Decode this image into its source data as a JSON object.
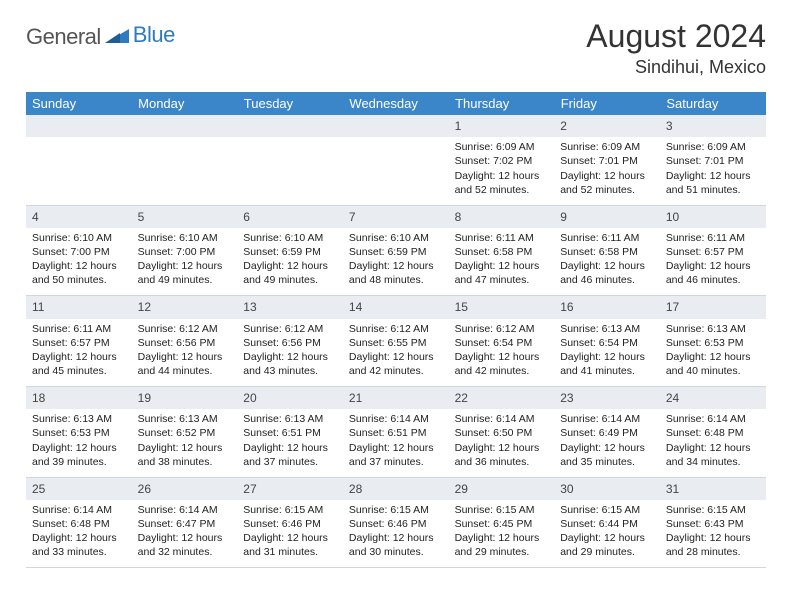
{
  "brand": {
    "part1": "General",
    "part2": "Blue"
  },
  "title": "August 2024",
  "location": "Sindihui, Mexico",
  "day_headers": [
    "Sunday",
    "Monday",
    "Tuesday",
    "Wednesday",
    "Thursday",
    "Friday",
    "Saturday"
  ],
  "colors": {
    "header_bg": "#3a86c8",
    "header_fg": "#ffffff",
    "daynum_bg": "#e9edf1",
    "border": "#cfd6dd",
    "brand_blue": "#2f7bbf"
  },
  "weeks": [
    [
      null,
      null,
      null,
      null,
      {
        "n": "1",
        "sr": "Sunrise: 6:09 AM",
        "ss": "Sunset: 7:02 PM",
        "dl": "Daylight: 12 hours and 52 minutes."
      },
      {
        "n": "2",
        "sr": "Sunrise: 6:09 AM",
        "ss": "Sunset: 7:01 PM",
        "dl": "Daylight: 12 hours and 52 minutes."
      },
      {
        "n": "3",
        "sr": "Sunrise: 6:09 AM",
        "ss": "Sunset: 7:01 PM",
        "dl": "Daylight: 12 hours and 51 minutes."
      }
    ],
    [
      {
        "n": "4",
        "sr": "Sunrise: 6:10 AM",
        "ss": "Sunset: 7:00 PM",
        "dl": "Daylight: 12 hours and 50 minutes."
      },
      {
        "n": "5",
        "sr": "Sunrise: 6:10 AM",
        "ss": "Sunset: 7:00 PM",
        "dl": "Daylight: 12 hours and 49 minutes."
      },
      {
        "n": "6",
        "sr": "Sunrise: 6:10 AM",
        "ss": "Sunset: 6:59 PM",
        "dl": "Daylight: 12 hours and 49 minutes."
      },
      {
        "n": "7",
        "sr": "Sunrise: 6:10 AM",
        "ss": "Sunset: 6:59 PM",
        "dl": "Daylight: 12 hours and 48 minutes."
      },
      {
        "n": "8",
        "sr": "Sunrise: 6:11 AM",
        "ss": "Sunset: 6:58 PM",
        "dl": "Daylight: 12 hours and 47 minutes."
      },
      {
        "n": "9",
        "sr": "Sunrise: 6:11 AM",
        "ss": "Sunset: 6:58 PM",
        "dl": "Daylight: 12 hours and 46 minutes."
      },
      {
        "n": "10",
        "sr": "Sunrise: 6:11 AM",
        "ss": "Sunset: 6:57 PM",
        "dl": "Daylight: 12 hours and 46 minutes."
      }
    ],
    [
      {
        "n": "11",
        "sr": "Sunrise: 6:11 AM",
        "ss": "Sunset: 6:57 PM",
        "dl": "Daylight: 12 hours and 45 minutes."
      },
      {
        "n": "12",
        "sr": "Sunrise: 6:12 AM",
        "ss": "Sunset: 6:56 PM",
        "dl": "Daylight: 12 hours and 44 minutes."
      },
      {
        "n": "13",
        "sr": "Sunrise: 6:12 AM",
        "ss": "Sunset: 6:56 PM",
        "dl": "Daylight: 12 hours and 43 minutes."
      },
      {
        "n": "14",
        "sr": "Sunrise: 6:12 AM",
        "ss": "Sunset: 6:55 PM",
        "dl": "Daylight: 12 hours and 42 minutes."
      },
      {
        "n": "15",
        "sr": "Sunrise: 6:12 AM",
        "ss": "Sunset: 6:54 PM",
        "dl": "Daylight: 12 hours and 42 minutes."
      },
      {
        "n": "16",
        "sr": "Sunrise: 6:13 AM",
        "ss": "Sunset: 6:54 PM",
        "dl": "Daylight: 12 hours and 41 minutes."
      },
      {
        "n": "17",
        "sr": "Sunrise: 6:13 AM",
        "ss": "Sunset: 6:53 PM",
        "dl": "Daylight: 12 hours and 40 minutes."
      }
    ],
    [
      {
        "n": "18",
        "sr": "Sunrise: 6:13 AM",
        "ss": "Sunset: 6:53 PM",
        "dl": "Daylight: 12 hours and 39 minutes."
      },
      {
        "n": "19",
        "sr": "Sunrise: 6:13 AM",
        "ss": "Sunset: 6:52 PM",
        "dl": "Daylight: 12 hours and 38 minutes."
      },
      {
        "n": "20",
        "sr": "Sunrise: 6:13 AM",
        "ss": "Sunset: 6:51 PM",
        "dl": "Daylight: 12 hours and 37 minutes."
      },
      {
        "n": "21",
        "sr": "Sunrise: 6:14 AM",
        "ss": "Sunset: 6:51 PM",
        "dl": "Daylight: 12 hours and 37 minutes."
      },
      {
        "n": "22",
        "sr": "Sunrise: 6:14 AM",
        "ss": "Sunset: 6:50 PM",
        "dl": "Daylight: 12 hours and 36 minutes."
      },
      {
        "n": "23",
        "sr": "Sunrise: 6:14 AM",
        "ss": "Sunset: 6:49 PM",
        "dl": "Daylight: 12 hours and 35 minutes."
      },
      {
        "n": "24",
        "sr": "Sunrise: 6:14 AM",
        "ss": "Sunset: 6:48 PM",
        "dl": "Daylight: 12 hours and 34 minutes."
      }
    ],
    [
      {
        "n": "25",
        "sr": "Sunrise: 6:14 AM",
        "ss": "Sunset: 6:48 PM",
        "dl": "Daylight: 12 hours and 33 minutes."
      },
      {
        "n": "26",
        "sr": "Sunrise: 6:14 AM",
        "ss": "Sunset: 6:47 PM",
        "dl": "Daylight: 12 hours and 32 minutes."
      },
      {
        "n": "27",
        "sr": "Sunrise: 6:15 AM",
        "ss": "Sunset: 6:46 PM",
        "dl": "Daylight: 12 hours and 31 minutes."
      },
      {
        "n": "28",
        "sr": "Sunrise: 6:15 AM",
        "ss": "Sunset: 6:46 PM",
        "dl": "Daylight: 12 hours and 30 minutes."
      },
      {
        "n": "29",
        "sr": "Sunrise: 6:15 AM",
        "ss": "Sunset: 6:45 PM",
        "dl": "Daylight: 12 hours and 29 minutes."
      },
      {
        "n": "30",
        "sr": "Sunrise: 6:15 AM",
        "ss": "Sunset: 6:44 PM",
        "dl": "Daylight: 12 hours and 29 minutes."
      },
      {
        "n": "31",
        "sr": "Sunrise: 6:15 AM",
        "ss": "Sunset: 6:43 PM",
        "dl": "Daylight: 12 hours and 28 minutes."
      }
    ]
  ]
}
